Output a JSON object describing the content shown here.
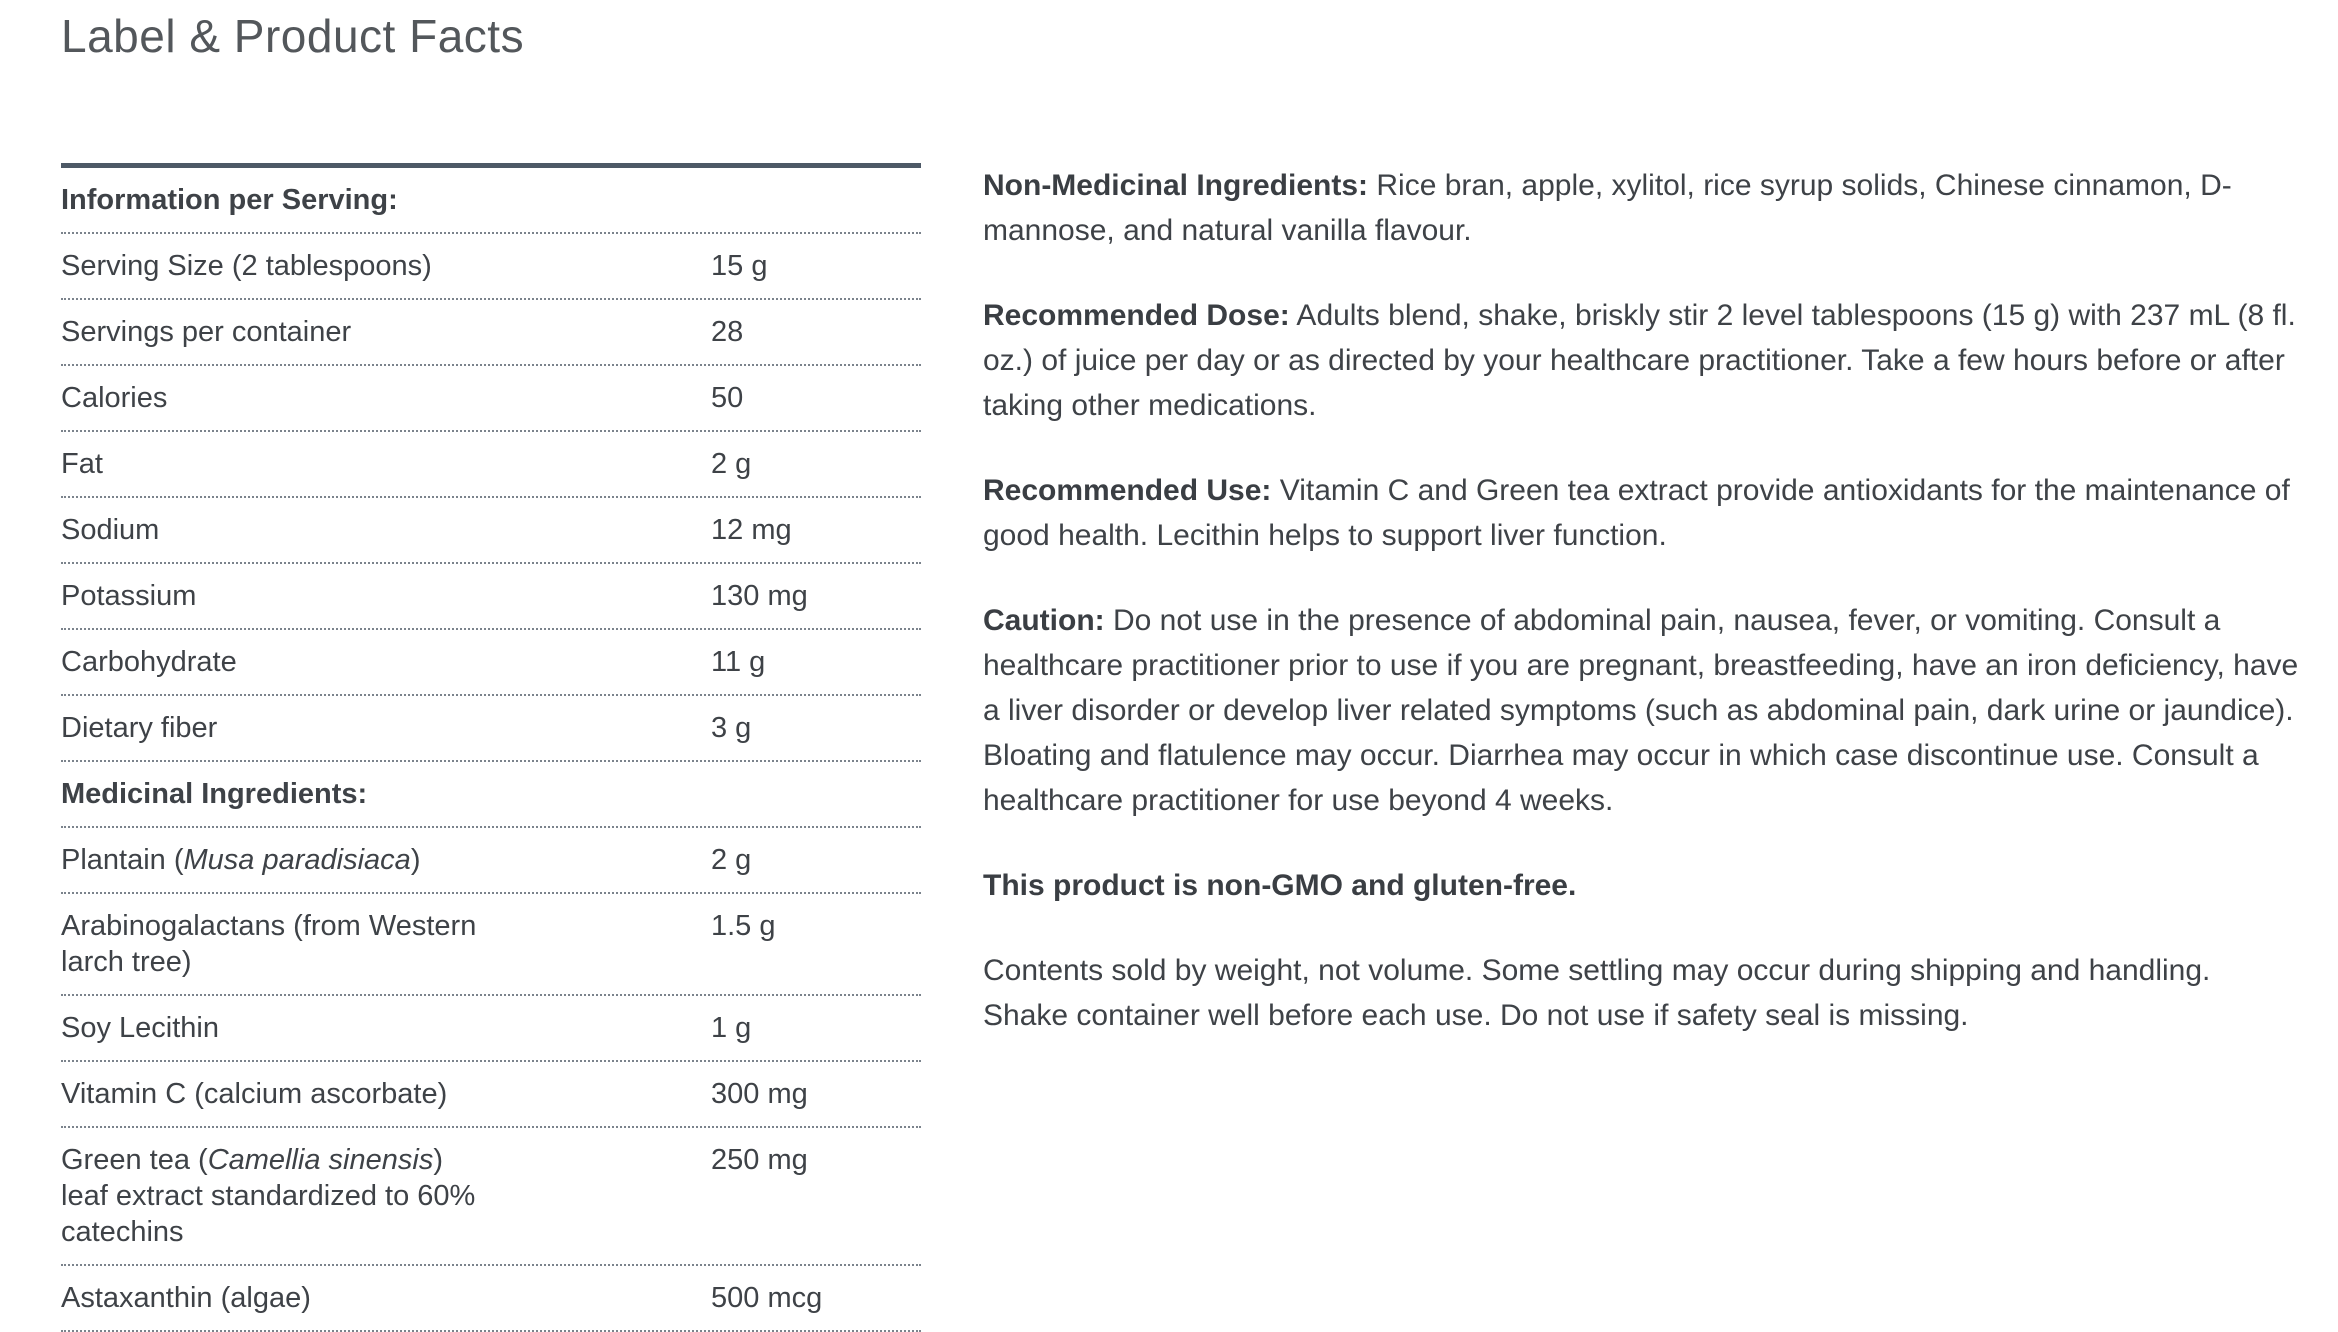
{
  "page": {
    "title": "Label & Product Facts"
  },
  "colors": {
    "background": "#ffffff",
    "body_text": "#3e4247",
    "title_text": "#53575b",
    "table_top_border": "#4d5966",
    "dotted_divider": "#7b838c"
  },
  "facts_table": {
    "sections": [
      {
        "header": "Information per Serving:",
        "rows": [
          {
            "name_parts": [
              {
                "t": "Serving Size (2 tablespoons)"
              }
            ],
            "value": "15 g"
          },
          {
            "name_parts": [
              {
                "t": "Servings per container"
              }
            ],
            "value": "28"
          },
          {
            "name_parts": [
              {
                "t": "Calories"
              }
            ],
            "value": "50"
          },
          {
            "name_parts": [
              {
                "t": "Fat"
              }
            ],
            "value": "2 g"
          },
          {
            "name_parts": [
              {
                "t": "Sodium"
              }
            ],
            "value": "12 mg"
          },
          {
            "name_parts": [
              {
                "t": "Potassium"
              }
            ],
            "value": "130 mg"
          },
          {
            "name_parts": [
              {
                "t": "Carbohydrate"
              }
            ],
            "value": "11 g"
          },
          {
            "name_parts": [
              {
                "t": "Dietary fiber"
              }
            ],
            "value": "3 g"
          }
        ]
      },
      {
        "header": "Medicinal Ingredients:",
        "rows": [
          {
            "name_parts": [
              {
                "t": "Plantain ("
              },
              {
                "t": "Musa paradisiaca",
                "italic": true
              },
              {
                "t": ")"
              }
            ],
            "value": "2 g"
          },
          {
            "name_parts": [
              {
                "t": "Arabinogalactans (from Western"
              },
              {
                "br": true
              },
              {
                "t": "larch tree)"
              }
            ],
            "value": "1.5 g"
          },
          {
            "name_parts": [
              {
                "t": "Soy Lecithin"
              }
            ],
            "value": "1 g"
          },
          {
            "name_parts": [
              {
                "t": "Vitamin C (calcium ascorbate)"
              }
            ],
            "value": "300 mg"
          },
          {
            "name_parts": [
              {
                "t": "Green tea ("
              },
              {
                "t": "Camellia sinensis",
                "italic": true
              },
              {
                "t": ")"
              },
              {
                "br": true
              },
              {
                "t": "leaf extract standardized to 60%"
              },
              {
                "br": true
              },
              {
                "t": "catechins"
              }
            ],
            "value": "250 mg"
          },
          {
            "name_parts": [
              {
                "t": "Astaxanthin (algae)"
              }
            ],
            "value": "500 mcg"
          }
        ]
      }
    ]
  },
  "right_column": {
    "paragraphs": [
      {
        "label": "Non-Medicinal Ingredients:",
        "text": "Rice bran, apple, xylitol, rice syrup solids, Chinese cinnamon, D-mannose, and natural vanilla flavour."
      },
      {
        "label": "Recommended Dose:",
        "text": "Adults blend, shake, briskly stir 2 level tablespoons (15 g) with 237 mL (8 fl. oz.) of juice per day or as directed by your healthcare practitioner. Take a few hours before or after taking other medications."
      },
      {
        "label": "Recommended Use:",
        "text": "Vitamin C and Green tea extract provide antioxidants for the maintenance of good health. Lecithin helps to support liver function."
      },
      {
        "label": "Caution:",
        "text": "Do not use in the presence of abdominal pain, nausea, fever, or vomiting. Consult a healthcare practitioner prior to use if you are pregnant, breastfeeding, have an iron deficiency, have a liver disorder or develop liver related symptoms (such as abdominal pain, dark urine or jaundice). Bloating and flatulence may occur. Diarrhea may occur in which case discontinue use. Consult a healthcare practitioner for use beyond 4 weeks."
      },
      {
        "label": "This product is non-GMO and gluten-free.",
        "text": ""
      },
      {
        "label": "",
        "text": "Contents sold by weight, not volume. Some settling may occur during shipping and handling. Shake container well before each use. Do not use if safety seal is missing."
      }
    ]
  }
}
